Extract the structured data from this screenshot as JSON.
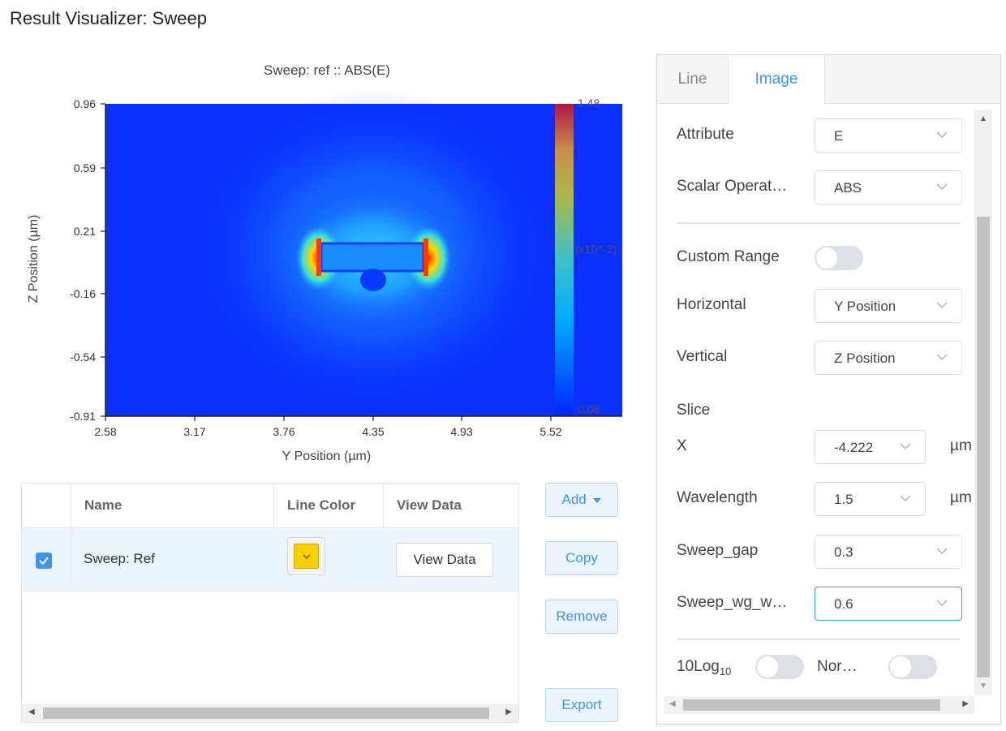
{
  "page_title": "Result Visualizer: Sweep",
  "plot": {
    "title": "Sweep: ref :: ABS(E)",
    "xlabel": "Y Position (µm)",
    "ylabel": "Z Position (µm)",
    "xticks": [
      "2.58",
      "3.17",
      "3.76",
      "4.35",
      "4.93",
      "5.52"
    ],
    "yticks": [
      "0.96",
      "0.59",
      "0.21",
      "-0.16",
      "-0.54",
      "-0.91"
    ],
    "colorbar": {
      "max": "1.48",
      "min": "0.08",
      "scale_label": "(x10^-2)"
    }
  },
  "chart_data": {
    "type": "heatmap",
    "title": "Sweep: ref :: ABS(E)",
    "xlabel": "Y Position (µm)",
    "ylabel": "Z Position (µm)",
    "xlim": [
      2.58,
      6.0
    ],
    "ylim": [
      -0.91,
      0.96
    ],
    "colorbar_range": [
      0.08,
      1.48
    ],
    "colorbar_scale": "x10^-2",
    "colormap": "jet",
    "features": [
      {
        "name": "waveguide",
        "y_range": [
          3.95,
          4.65
        ],
        "z_range": [
          0.06,
          0.21
        ],
        "value_level": "low"
      },
      {
        "name": "left-edge-hotspot",
        "y": 3.92,
        "z": 0.13,
        "value_level": "max"
      },
      {
        "name": "right-edge-hotspot",
        "y": 4.68,
        "z": 0.13,
        "value_level": "max"
      }
    ]
  },
  "table": {
    "headers": {
      "name": "Name",
      "line_color": "Line Color",
      "view_data": "View Data"
    },
    "rows": [
      {
        "checked": true,
        "name": "Sweep: Ref",
        "color": "#f6d000",
        "view_label": "View Data"
      }
    ]
  },
  "buttons": {
    "add": "Add",
    "copy": "Copy",
    "remove": "Remove",
    "export": "Export"
  },
  "panel": {
    "tabs": {
      "line": "Line",
      "image": "Image"
    },
    "active_tab": "Image",
    "attribute": {
      "label": "Attribute",
      "value": "E"
    },
    "scalar_operation": {
      "label": "Scalar Operat…",
      "value": "ABS"
    },
    "custom_range": {
      "label": "Custom Range",
      "on": false
    },
    "horizontal": {
      "label": "Horizontal",
      "value": "Y Position"
    },
    "vertical": {
      "label": "Vertical",
      "value": "Z Position"
    },
    "slice_heading": "Slice",
    "x": {
      "label": "X",
      "value": "-4.222",
      "unit": "µm"
    },
    "wavelength": {
      "label": "Wavelength",
      "value": "1.5",
      "unit": "µm"
    },
    "sweep_gap": {
      "label": "Sweep_gap",
      "value": "0.3"
    },
    "sweep_wg_w": {
      "label": "Sweep_wg_w…",
      "value": "0.6"
    },
    "log10": {
      "label": "10Log",
      "subscript": "10",
      "on": false
    },
    "normalize": {
      "label": "Nor…",
      "on": false
    }
  },
  "colors": {
    "accent": "#3f93f3",
    "swatch": "#f6d000"
  }
}
